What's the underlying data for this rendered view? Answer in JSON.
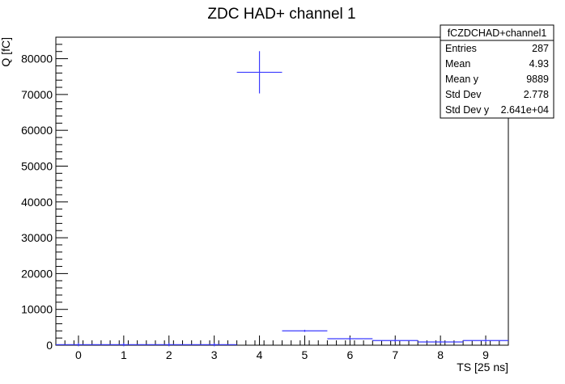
{
  "chart_data": {
    "type": "scatter",
    "title": "ZDC HAD+ channel 1",
    "xlabel": "TS [25 ns]",
    "ylabel": "Q [fC]",
    "xlim": [
      -0.5,
      9.5
    ],
    "ylim": [
      0,
      86000
    ],
    "x_ticks": [
      "0",
      "1",
      "2",
      "3",
      "4",
      "5",
      "6",
      "7",
      "8",
      "9"
    ],
    "y_ticks": [
      "0",
      "10000",
      "20000",
      "30000",
      "40000",
      "50000",
      "60000",
      "70000",
      "80000"
    ],
    "series": [
      {
        "x": [
          0,
          1,
          2,
          3,
          4,
          5,
          6,
          7,
          8,
          9
        ],
        "y": [
          150,
          150,
          150,
          150,
          76200,
          4000,
          1800,
          1300,
          900,
          1300
        ],
        "y_err": [
          0,
          0,
          0,
          0,
          5900,
          300,
          400,
          350,
          300,
          400
        ],
        "x_halfwidth": 0.5
      }
    ],
    "marker_color": "#3c3cff",
    "grid": false,
    "stats_box": {
      "title": "fCZDCHAD+channel1",
      "rows": [
        {
          "label": "Entries",
          "value": "287"
        },
        {
          "label": "Mean",
          "value": "4.93"
        },
        {
          "label": "Mean y",
          "value": "9889"
        },
        {
          "label": "Std Dev",
          "value": "2.778"
        },
        {
          "label": "Std Dev y",
          "value": "2.641e+04"
        }
      ]
    }
  }
}
